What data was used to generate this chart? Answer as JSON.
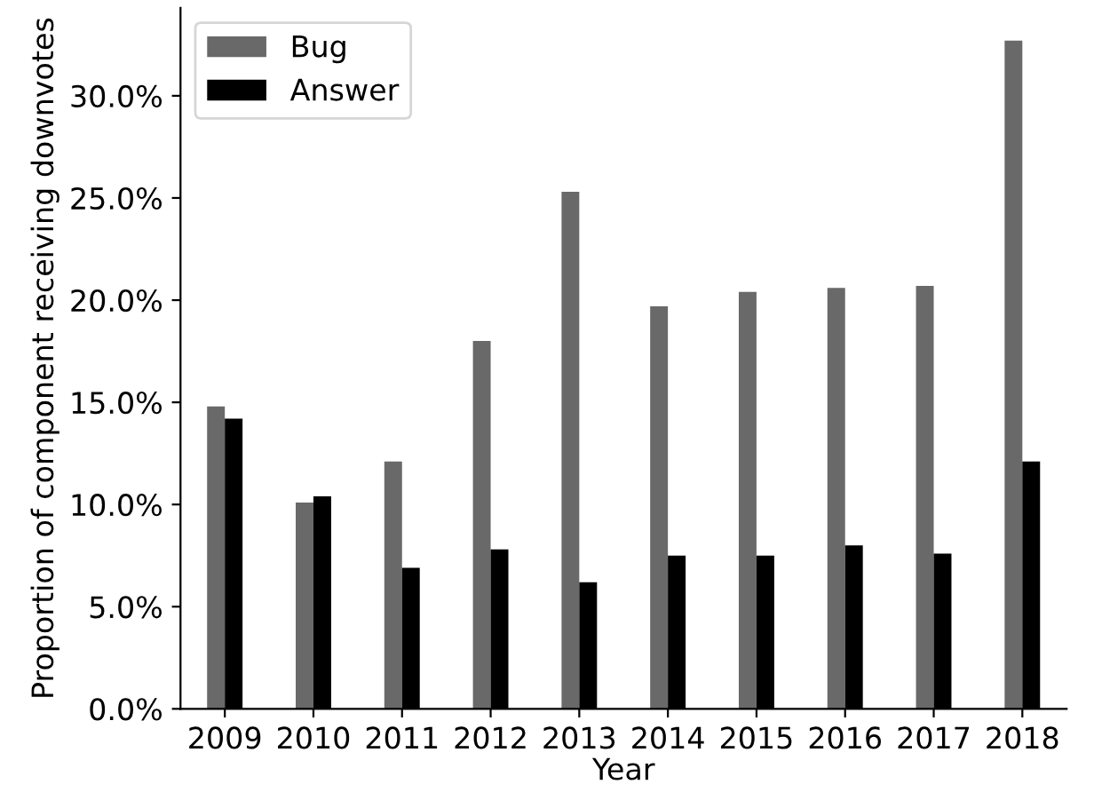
{
  "chart_data": {
    "type": "bar",
    "xlabel": "Year",
    "ylabel": "Proportion of component receiving downvotes",
    "categories": [
      "2009",
      "2010",
      "2011",
      "2012",
      "2013",
      "2014",
      "2015",
      "2016",
      "2017",
      "2018"
    ],
    "series": [
      {
        "name": "Bug",
        "color": "#696969",
        "values": [
          14.8,
          10.1,
          12.1,
          18.0,
          25.3,
          19.7,
          20.4,
          20.6,
          20.7,
          32.7
        ]
      },
      {
        "name": "Answer",
        "color": "#000000",
        "values": [
          14.2,
          10.4,
          6.9,
          7.8,
          6.2,
          7.5,
          7.5,
          8.0,
          7.6,
          12.1
        ]
      }
    ],
    "ylim": [
      0,
      34.3
    ],
    "yticks": [
      {
        "value": 0,
        "label": "0.0%"
      },
      {
        "value": 5,
        "label": "5.0%"
      },
      {
        "value": 10,
        "label": "10.0%"
      },
      {
        "value": 15,
        "label": "15.0%"
      },
      {
        "value": 20,
        "label": "20.0%"
      },
      {
        "value": 25,
        "label": "25.0%"
      },
      {
        "value": 30,
        "label": "30.0%"
      }
    ],
    "legend": "top left",
    "grid": false
  }
}
